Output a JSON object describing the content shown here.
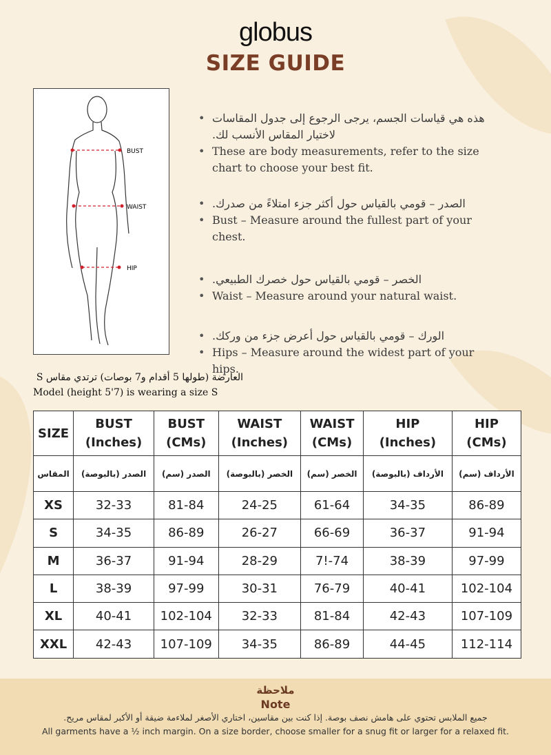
{
  "brand": "globus",
  "title": "SIZE GUIDE",
  "figure": {
    "labels": [
      "BUST",
      "WAIST",
      "HIP"
    ],
    "marker_color": "#d0202a"
  },
  "bullets": [
    {
      "ar": "هذه هي قياسات الجسم، يرجى الرجوع إلى جدول المقاسات لاختيار المقاس الأنسب لك.",
      "en": "These are body measurements, refer to the size chart to choose your best fit."
    },
    {
      "ar": "الصدر – قومي بالقياس حول أكثر جزء امتلاءً من صدرك.",
      "en": "Bust – Measure around the fullest part of your chest."
    },
    {
      "ar": "الخصر – قومي بالقياس حول خصرك الطبيعي.",
      "en": "Waist – Measure around your natural waist."
    },
    {
      "ar": "الورك – قومي بالقياس حول أعرض جزء من وركك.",
      "en": "Hips – Measure around the widest part of your hips."
    }
  ],
  "model": {
    "ar": "العارضة (طولها 5 أقدام و7 بوصات) ترتدي مقاس S",
    "en": "Model (height 5'7) is wearing a size S"
  },
  "table": {
    "headers": [
      [
        "SIZE",
        ""
      ],
      [
        "BUST",
        "(Inches)"
      ],
      [
        "BUST",
        "(CMs)"
      ],
      [
        "WAIST",
        "(Inches)"
      ],
      [
        "WAIST",
        "(CMs)"
      ],
      [
        "HIP",
        "(Inches)"
      ],
      [
        "HIP",
        "(CMs)"
      ]
    ],
    "headers_ar": [
      "المقاس",
      "الصدر (بالبوصة)",
      "الصدر (سم)",
      "الخصر (بالبوصة)",
      "الخصر (سم)",
      "الأرداف (بالبوصة)",
      "الأرداف (سم)"
    ],
    "rows": [
      [
        "XS",
        "32-33",
        "81-84",
        "24-25",
        "61-64",
        "34-35",
        "86-89"
      ],
      [
        "S",
        "34-35",
        "86-89",
        "26-27",
        "66-69",
        "36-37",
        "91-94"
      ],
      [
        "M",
        "36-37",
        "91-94",
        "28-29",
        "7!-74",
        "38-39",
        "97-99"
      ],
      [
        "L",
        "38-39",
        "97-99",
        "30-31",
        "76-79",
        "40-41",
        "102-104"
      ],
      [
        "XL",
        "40-41",
        "102-104",
        "32-33",
        "81-84",
        "42-43",
        "107-109"
      ],
      [
        "XXL",
        "42-43",
        "107-109",
        "34-35",
        "86-89",
        "44-45",
        "112-114"
      ]
    ]
  },
  "note": {
    "title_ar": "ملاحظة",
    "title": "Note",
    "text_ar": "جميع الملابس تحتوي على هامش نصف بوصة. إذا كنت بين مقاسين، اختاري الأصغر لملاءمة ضيقة أو الأكبر لمقاس مريح.",
    "text": "All garments have a ½ inch margin. On a size border, choose smaller for a snug fit or larger for a relaxed fit."
  },
  "colors": {
    "background": "#faf0df",
    "title": "#7a3e26",
    "note_band": "#f1dcb4"
  }
}
